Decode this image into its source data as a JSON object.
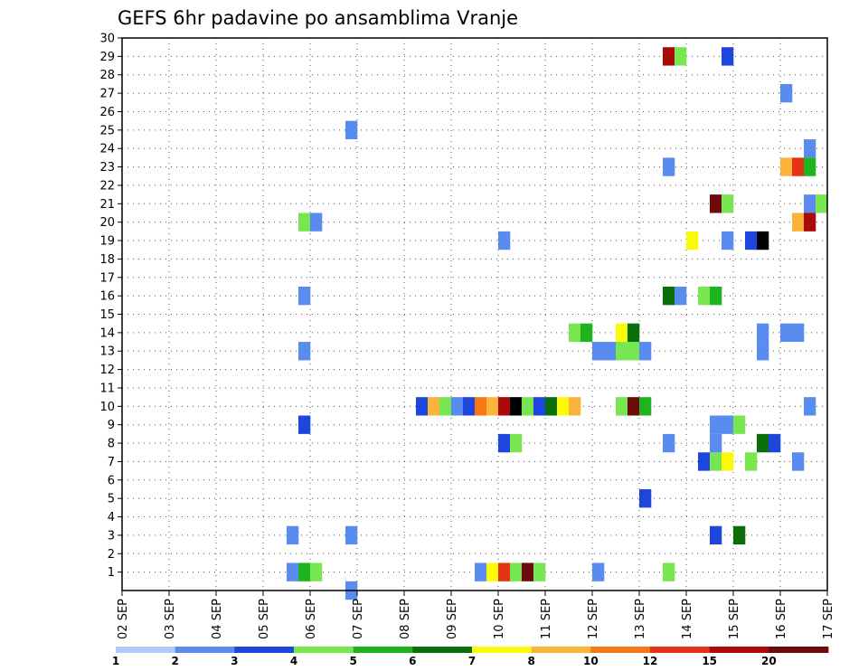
{
  "chart_data": {
    "type": "heatmap",
    "title": "GEFS 6hr padavine po ansamblima Vranje",
    "xlabel": "",
    "ylabel": "",
    "x_tick_labels": [
      "02 SEP",
      "03 SEP",
      "04 SEP",
      "05 SEP",
      "06 SEP",
      "07 SEP",
      "08 SEP",
      "09 SEP",
      "10 SEP",
      "11 SEP",
      "12 SEP",
      "13 SEP",
      "14 SEP",
      "15 SEP",
      "16 SEP",
      "17 SEP"
    ],
    "x_unit": "6-hour step since 02 SEP",
    "x_range": [
      0,
      60
    ],
    "y_tick_labels": [
      "1",
      "2",
      "3",
      "4",
      "5",
      "6",
      "7",
      "8",
      "9",
      "10",
      "11",
      "12",
      "13",
      "14",
      "15",
      "16",
      "17",
      "18",
      "19",
      "20",
      "21",
      "22",
      "23",
      "24",
      "25",
      "26",
      "27",
      "28",
      "29",
      "30"
    ],
    "y_range": [
      0,
      30
    ],
    "grid": true,
    "colorbar": {
      "orientation": "horizontal",
      "placement": "bottom",
      "labels": [
        "1",
        "2",
        "3",
        "4",
        "5",
        "6",
        "7",
        "8",
        "10",
        "12",
        "15",
        "20"
      ],
      "colors": [
        "#b4c8fa",
        "#5a8cf0",
        "#1e46dc",
        "#78e650",
        "#1eb41e",
        "#0a6e0a",
        "#fafa0a",
        "#fab43c",
        "#f57814",
        "#e63214",
        "#aa0a0a",
        "#6e0a0a"
      ]
    },
    "cells": [
      {
        "t": 14,
        "m": 1,
        "v": 1
      },
      {
        "t": 15,
        "m": 1,
        "v": 4
      },
      {
        "t": 16,
        "m": 1,
        "v": 3
      },
      {
        "t": 19,
        "m": 0,
        "v": 1
      },
      {
        "t": 30,
        "m": 1,
        "v": 1
      },
      {
        "t": 31,
        "m": 1,
        "v": 6
      },
      {
        "t": 32,
        "m": 1,
        "v": 9
      },
      {
        "t": 33,
        "m": 1,
        "v": 3
      },
      {
        "t": 34,
        "m": 1,
        "v": 11
      },
      {
        "t": 35,
        "m": 1,
        "v": 3
      },
      {
        "t": 40,
        "m": 1,
        "v": 1
      },
      {
        "t": 46,
        "m": 1,
        "v": 3
      },
      {
        "t": 14,
        "m": 3,
        "v": 1
      },
      {
        "t": 19,
        "m": 3,
        "v": 1
      },
      {
        "t": 50,
        "m": 3,
        "v": 2
      },
      {
        "t": 52,
        "m": 3,
        "v": 5
      },
      {
        "t": 44,
        "m": 5,
        "v": 2
      },
      {
        "t": 49,
        "m": 7,
        "v": 2
      },
      {
        "t": 50,
        "m": 7,
        "v": 3
      },
      {
        "t": 51,
        "m": 7,
        "v": 6
      },
      {
        "t": 53,
        "m": 7,
        "v": 3
      },
      {
        "t": 57,
        "m": 7,
        "v": 1
      },
      {
        "t": 32,
        "m": 8,
        "v": 2
      },
      {
        "t": 33,
        "m": 8,
        "v": 3
      },
      {
        "t": 46,
        "m": 8,
        "v": 1
      },
      {
        "t": 50,
        "m": 8,
        "v": 1
      },
      {
        "t": 54,
        "m": 8,
        "v": 5
      },
      {
        "t": 55,
        "m": 8,
        "v": 2
      },
      {
        "t": 15,
        "m": 9,
        "v": 2
      },
      {
        "t": 50,
        "m": 9,
        "v": 1
      },
      {
        "t": 51,
        "m": 9,
        "v": 1
      },
      {
        "t": 52,
        "m": 9,
        "v": 3
      },
      {
        "t": 25,
        "m": 10,
        "v": 2
      },
      {
        "t": 26,
        "m": 10,
        "v": 7
      },
      {
        "t": 27,
        "m": 10,
        "v": 3
      },
      {
        "t": 28,
        "m": 10,
        "v": 1
      },
      {
        "t": 29,
        "m": 10,
        "v": 2
      },
      {
        "t": 30,
        "m": 10,
        "v": 8
      },
      {
        "t": 31,
        "m": 10,
        "v": 7
      },
      {
        "t": 32,
        "m": 10,
        "v": 10
      },
      {
        "t": 33,
        "m": 10,
        "v": 12
      },
      {
        "t": 34,
        "m": 10,
        "v": 3
      },
      {
        "t": 35,
        "m": 10,
        "v": 2
      },
      {
        "t": 36,
        "m": 10,
        "v": 5
      },
      {
        "t": 37,
        "m": 10,
        "v": 6
      },
      {
        "t": 38,
        "m": 10,
        "v": 7
      },
      {
        "t": 42,
        "m": 10,
        "v": 3
      },
      {
        "t": 43,
        "m": 10,
        "v": 11
      },
      {
        "t": 44,
        "m": 10,
        "v": 4
      },
      {
        "t": 58,
        "m": 10,
        "v": 1
      },
      {
        "t": 15,
        "m": 13,
        "v": 1
      },
      {
        "t": 40,
        "m": 13,
        "v": 1
      },
      {
        "t": 41,
        "m": 13,
        "v": 1
      },
      {
        "t": 42,
        "m": 13,
        "v": 3
      },
      {
        "t": 43,
        "m": 13,
        "v": 3
      },
      {
        "t": 44,
        "m": 13,
        "v": 1
      },
      {
        "t": 54,
        "m": 13,
        "v": 1
      },
      {
        "t": 38,
        "m": 14,
        "v": 3
      },
      {
        "t": 39,
        "m": 14,
        "v": 4
      },
      {
        "t": 42,
        "m": 14,
        "v": 6
      },
      {
        "t": 43,
        "m": 14,
        "v": 5
      },
      {
        "t": 54,
        "m": 14,
        "v": 1
      },
      {
        "t": 56,
        "m": 14,
        "v": 1
      },
      {
        "t": 57,
        "m": 14,
        "v": 1
      },
      {
        "t": 15,
        "m": 16,
        "v": 1
      },
      {
        "t": 46,
        "m": 16,
        "v": 5
      },
      {
        "t": 47,
        "m": 16,
        "v": 1
      },
      {
        "t": 49,
        "m": 16,
        "v": 3
      },
      {
        "t": 50,
        "m": 16,
        "v": 4
      },
      {
        "t": 32,
        "m": 19,
        "v": 1
      },
      {
        "t": 48,
        "m": 19,
        "v": 6
      },
      {
        "t": 51,
        "m": 19,
        "v": 1
      },
      {
        "t": 53,
        "m": 19,
        "v": 2
      },
      {
        "t": 54,
        "m": 19,
        "v": 12
      },
      {
        "t": 15,
        "m": 20,
        "v": 3
      },
      {
        "t": 16,
        "m": 20,
        "v": 1
      },
      {
        "t": 57,
        "m": 20,
        "v": 7
      },
      {
        "t": 58,
        "m": 20,
        "v": 10
      },
      {
        "t": 50,
        "m": 21,
        "v": 11
      },
      {
        "t": 51,
        "m": 21,
        "v": 3
      },
      {
        "t": 58,
        "m": 21,
        "v": 1
      },
      {
        "t": 59,
        "m": 21,
        "v": 3
      },
      {
        "t": 46,
        "m": 23,
        "v": 1
      },
      {
        "t": 56,
        "m": 23,
        "v": 7
      },
      {
        "t": 57,
        "m": 23,
        "v": 9
      },
      {
        "t": 58,
        "m": 23,
        "v": 4
      },
      {
        "t": 58,
        "m": 24,
        "v": 1
      },
      {
        "t": 19,
        "m": 25,
        "v": 1
      },
      {
        "t": 56,
        "m": 27,
        "v": 1
      },
      {
        "t": 46,
        "m": 29,
        "v": 10
      },
      {
        "t": 47,
        "m": 29,
        "v": 3
      },
      {
        "t": 51,
        "m": 29,
        "v": 2
      }
    ]
  }
}
